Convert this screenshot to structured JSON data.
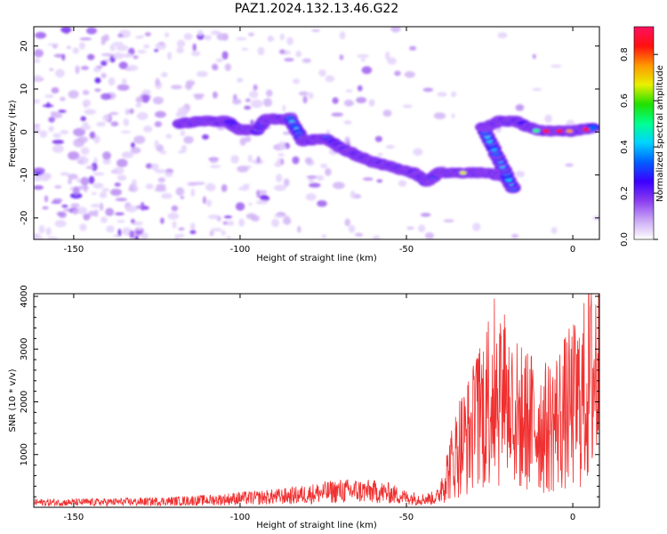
{
  "title": "PAZ1.2024.132.13.46.G22",
  "chart_data": [
    {
      "type": "heatmap",
      "xlabel": "Height of straight line (km)",
      "ylabel": "Frequency (Hz)",
      "xlim": [
        -162,
        8
      ],
      "ylim": [
        -25,
        24.5
      ],
      "xticks": [
        -150,
        -100,
        -50,
        0
      ],
      "yticks": [
        -20,
        -10,
        0,
        10,
        20
      ],
      "grid": false,
      "colorbar": {
        "label": "Normalized spectral amplitude",
        "range": [
          0.0,
          0.92
        ],
        "ticks": [
          0.0,
          0.2,
          0.4,
          0.6,
          0.8
        ],
        "colors": [
          "#ffffff",
          "#c9a6f5",
          "#8a3cf0",
          "#3b00ff",
          "#0060ff",
          "#00d4ff",
          "#00ff90",
          "#20e000",
          "#e8f000",
          "#ff9800",
          "#ff1010",
          "#ff1060"
        ]
      },
      "ridge_track": [
        {
          "x": -118,
          "y": 2.0
        },
        {
          "x": -112,
          "y": 2.5
        },
        {
          "x": -104,
          "y": 2.5
        },
        {
          "x": -100,
          "y": 0.5
        },
        {
          "x": -95,
          "y": 0.5
        },
        {
          "x": -92,
          "y": 3.0
        },
        {
          "x": -85,
          "y": 3.0
        },
        {
          "x": -81,
          "y": -2.0
        },
        {
          "x": -74,
          "y": -1.5
        },
        {
          "x": -70,
          "y": -3.5
        },
        {
          "x": -65,
          "y": -5.5
        },
        {
          "x": -60,
          "y": -7.0
        },
        {
          "x": -55,
          "y": -8.0
        },
        {
          "x": -48,
          "y": -9.5
        },
        {
          "x": -44,
          "y": -11.5
        },
        {
          "x": -40,
          "y": -9.5
        },
        {
          "x": -33,
          "y": -9.5
        },
        {
          "x": -26,
          "y": -9.5
        },
        {
          "x": -20,
          "y": -10.5
        },
        {
          "x": -18,
          "y": -13.0
        },
        {
          "x": -27,
          "y": 1.0
        },
        {
          "x": -22,
          "y": 2.5
        },
        {
          "x": -17,
          "y": 2.5
        },
        {
          "x": -13,
          "y": 1.0
        },
        {
          "x": -9,
          "y": 0.2
        },
        {
          "x": -3,
          "y": 0.2
        },
        {
          "x": 0,
          "y": 0.2
        },
        {
          "x": 3,
          "y": 0.6
        },
        {
          "x": 6,
          "y": 1.0
        }
      ]
    },
    {
      "type": "line",
      "xlabel": "Height of straight line (km)",
      "ylabel": "SNR (10 * v/v)",
      "xlim": [
        -162,
        8
      ],
      "ylim": [
        0,
        4050
      ],
      "xticks": [
        -150,
        -100,
        -50,
        0
      ],
      "yticks": [
        1000,
        2000,
        3000,
        4000
      ],
      "grid": false,
      "series": [
        {
          "color": "#f03030",
          "x": [
            -162,
            -150,
            -140,
            -130,
            -120,
            -110,
            -105,
            -100,
            -95,
            -90,
            -85,
            -80,
            -75,
            -70,
            -65,
            -60,
            -55,
            -50,
            -45,
            -42,
            -40,
            -38,
            -36,
            -34,
            -32,
            -30,
            -28,
            -26,
            -24,
            -22,
            -20,
            -18,
            -16,
            -14,
            -12,
            -10,
            -8,
            -6,
            -4,
            -2,
            0,
            2,
            4,
            6,
            8
          ],
          "y": [
            150,
            150,
            160,
            170,
            190,
            220,
            240,
            280,
            290,
            320,
            350,
            400,
            450,
            500,
            500,
            480,
            430,
            300,
            250,
            280,
            350,
            600,
            900,
            1200,
            1300,
            1500,
            1700,
            2000,
            2300,
            2200,
            2000,
            1800,
            1700,
            1650,
            1600,
            1550,
            1500,
            1600,
            1700,
            1800,
            1900,
            2000,
            2200,
            2500,
            2800
          ]
        }
      ]
    }
  ]
}
